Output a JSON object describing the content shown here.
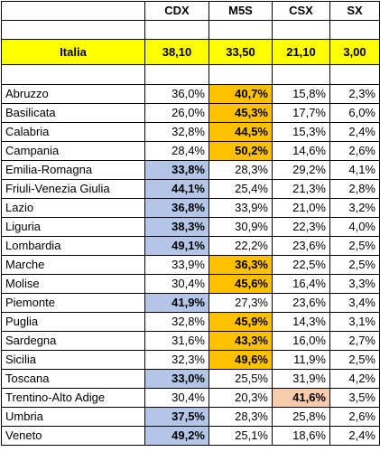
{
  "columns": [
    "CDX",
    "M5S",
    "CSX",
    "SX"
  ],
  "italia": {
    "name": "Italia",
    "values": [
      "38,10",
      "33,50",
      "21,10",
      "3,00"
    ]
  },
  "regions": [
    {
      "name": "Abruzzo",
      "values": [
        "36,0%",
        "40,7%",
        "15,8%",
        "2,3%"
      ],
      "winner": 1
    },
    {
      "name": "Basilicata",
      "values": [
        "26,0%",
        "45,3%",
        "17,7%",
        "6,0%"
      ],
      "winner": 1
    },
    {
      "name": "Calabria",
      "values": [
        "32,8%",
        "44,5%",
        "15,3%",
        "2,4%"
      ],
      "winner": 1
    },
    {
      "name": "Campania",
      "values": [
        "28,4%",
        "50,2%",
        "14,6%",
        "2,6%"
      ],
      "winner": 1
    },
    {
      "name": "Emilia-Romagna",
      "values": [
        "33,8%",
        "28,3%",
        "29,2%",
        "4,1%"
      ],
      "winner": 0
    },
    {
      "name": "Friuli-Venezia Giulia",
      "values": [
        "44,1%",
        "25,4%",
        "21,3%",
        "2,8%"
      ],
      "winner": 0
    },
    {
      "name": "Lazio",
      "values": [
        "36,8%",
        "33,9%",
        "21,0%",
        "3,2%"
      ],
      "winner": 0
    },
    {
      "name": "Liguria",
      "values": [
        "38,3%",
        "30,9%",
        "22,3%",
        "4,0%"
      ],
      "winner": 0
    },
    {
      "name": "Lombardia",
      "values": [
        "49,1%",
        "22,2%",
        "23,6%",
        "2,5%"
      ],
      "winner": 0
    },
    {
      "name": "Marche",
      "values": [
        "33,9%",
        "36,3%",
        "22,5%",
        "2,5%"
      ],
      "winner": 1
    },
    {
      "name": "Molise",
      "values": [
        "30,4%",
        "45,6%",
        "16,4%",
        "3,3%"
      ],
      "winner": 1
    },
    {
      "name": "Piemonte",
      "values": [
        "41,9%",
        "27,3%",
        "23,6%",
        "3,4%"
      ],
      "winner": 0
    },
    {
      "name": "Puglia",
      "values": [
        "32,8%",
        "45,9%",
        "14,3%",
        "3,1%"
      ],
      "winner": 1
    },
    {
      "name": "Sardegna",
      "values": [
        "31,6%",
        "43,3%",
        "16,0%",
        "2,7%"
      ],
      "winner": 1
    },
    {
      "name": "Sicilia",
      "values": [
        "32,3%",
        "49,6%",
        "11,9%",
        "2,5%"
      ],
      "winner": 1
    },
    {
      "name": "Toscana",
      "values": [
        "33,0%",
        "25,5%",
        "31,9%",
        "4,2%"
      ],
      "winner": 0
    },
    {
      "name": "Trentino-Alto Adige",
      "values": [
        "30,4%",
        "20,3%",
        "41,6%",
        "3,5%"
      ],
      "winner": 2
    },
    {
      "name": "Umbria",
      "values": [
        "37,5%",
        "28,3%",
        "25,8%",
        "2,6%"
      ],
      "winner": 0
    },
    {
      "name": "Veneto",
      "values": [
        "49,2%",
        "25,1%",
        "18,6%",
        "2,4%"
      ],
      "winner": 0
    }
  ],
  "colors": {
    "italia_bg": "#ffff00",
    "winner_cdx": "#b4c6e7",
    "winner_m5s": "#ffc000",
    "winner_csx": "#f8cbad"
  }
}
